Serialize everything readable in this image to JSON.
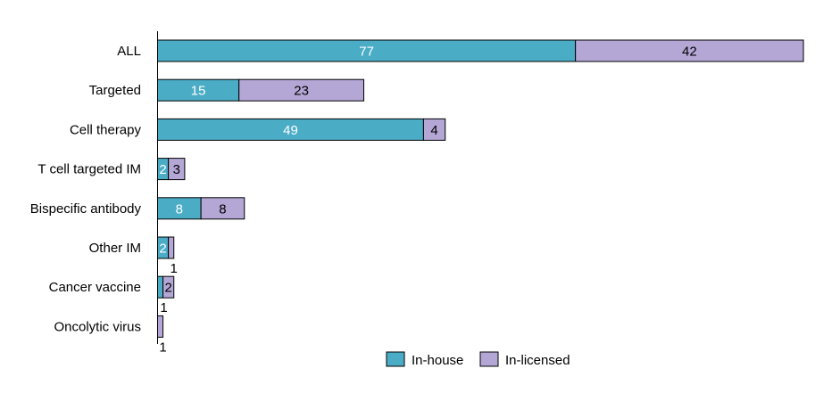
{
  "chart_data": {
    "type": "bar",
    "orientation": "horizontal",
    "stacked": true,
    "title": "",
    "xlabel": "",
    "ylabel": "",
    "categories": [
      "ALL",
      "Targeted",
      "Cell therapy",
      "T cell targeted IM",
      "Bispecific antibody",
      "Other IM",
      "Cancer vaccine",
      "Oncolytic virus"
    ],
    "series": [
      {
        "name": "In-house",
        "color": "#4BACC6",
        "label_color": "#ffffff",
        "values": [
          77,
          15,
          49,
          2,
          8,
          2,
          1,
          0
        ]
      },
      {
        "name": "In-licensed",
        "color": "#B4A7D6",
        "label_color": "#000000",
        "values": [
          42,
          23,
          4,
          3,
          8,
          1,
          2,
          1
        ]
      }
    ],
    "xlim": [
      0,
      120
    ],
    "grid": false,
    "x_axis_visible": false,
    "legend_position": "bottom-right"
  }
}
